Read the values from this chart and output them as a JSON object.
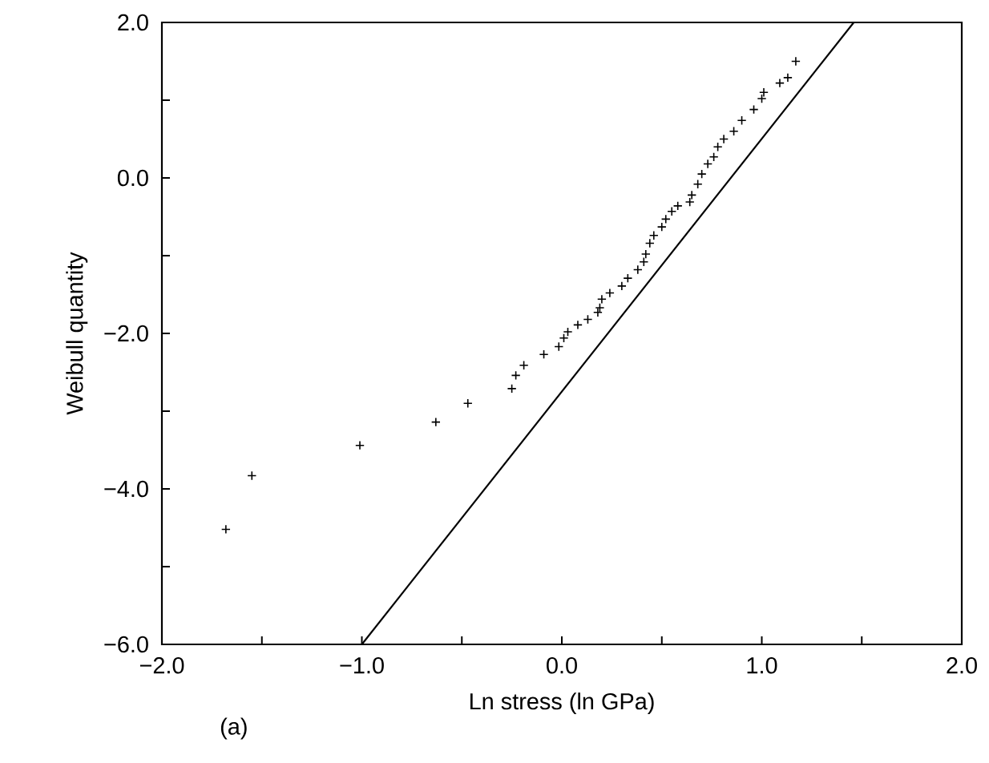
{
  "chart_data": {
    "type": "scatter",
    "xlabel": "Ln stress (ln GPa)",
    "ylabel": "Weibull quantity",
    "annotations": [
      "(a)"
    ],
    "series": [
      {
        "color": "#000000",
        "marker": "cross",
        "x": [
          -1.68,
          -1.55,
          -1.01,
          -0.63,
          -0.47,
          -0.25,
          -0.23,
          -0.19,
          -0.09,
          -0.015,
          0.01,
          0.03,
          0.08,
          0.13,
          0.18,
          0.19,
          0.2,
          0.24,
          0.3,
          0.33,
          0.38,
          0.41,
          0.42,
          0.44,
          0.46,
          0.5,
          0.52,
          0.55,
          0.58,
          0.64,
          0.65,
          0.68,
          0.7,
          0.73,
          0.76,
          0.78,
          0.81,
          0.86,
          0.9,
          0.96,
          1.0,
          1.01,
          1.09,
          1.13,
          1.17
        ],
        "values": [
          -4.52,
          -3.83,
          -3.44,
          -3.14,
          -2.9,
          -2.71,
          -2.54,
          -2.41,
          -2.27,
          -2.17,
          -2.06,
          -1.98,
          -1.89,
          -1.82,
          -1.73,
          -1.67,
          -1.56,
          -1.48,
          -1.39,
          -1.29,
          -1.18,
          -1.08,
          -0.98,
          -0.84,
          -0.74,
          -0.63,
          -0.53,
          -0.43,
          -0.36,
          -0.31,
          -0.22,
          -0.08,
          0.05,
          0.18,
          0.27,
          0.4,
          0.5,
          0.6,
          0.74,
          0.88,
          1.02,
          1.1,
          1.22,
          1.29,
          1.5
        ]
      },
      {
        "type": "line",
        "color": "#000000",
        "x": [
          -1.0,
          1.46
        ],
        "values": [
          -6.0,
          2.0
        ]
      }
    ],
    "xlim": [
      -2.0,
      2.0
    ],
    "ylim": [
      -6.0,
      2.0
    ],
    "xticks": [
      {
        "value": -2.0,
        "label": "−2.0"
      },
      {
        "value": -1.5,
        "label": null
      },
      {
        "value": -1.0,
        "label": "−1.0"
      },
      {
        "value": -0.5,
        "label": null
      },
      {
        "value": 0.0,
        "label": "0.0"
      },
      {
        "value": 0.5,
        "label": null
      },
      {
        "value": 1.0,
        "label": "1.0"
      },
      {
        "value": 1.5,
        "label": null
      },
      {
        "value": 2.0,
        "label": "2.0"
      }
    ],
    "yticks": [
      {
        "value": -6.0,
        "label": "−6.0"
      },
      {
        "value": -5.0,
        "label": null
      },
      {
        "value": -4.0,
        "label": "−4.0"
      },
      {
        "value": -3.0,
        "label": null
      },
      {
        "value": -2.0,
        "label": "−2.0"
      },
      {
        "value": -1.0,
        "label": null
      },
      {
        "value": 0.0,
        "label": "0.0"
      },
      {
        "value": 1.0,
        "label": null
      },
      {
        "value": 2.0,
        "label": "2.0"
      }
    ]
  }
}
